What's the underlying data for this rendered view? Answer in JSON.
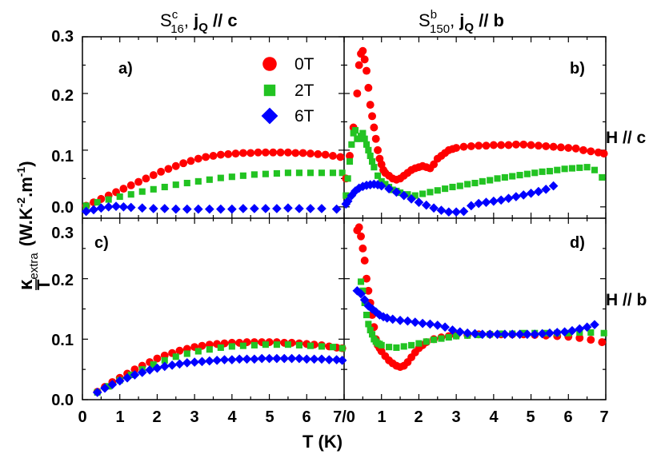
{
  "figure": {
    "titles": {
      "left": {
        "base": "S",
        "sup": "c",
        "sub": "16",
        "sep": ", ",
        "j": "j",
        "jsub": "Q",
        "rest": " // c"
      },
      "right": {
        "base": "S",
        "sup": "b",
        "sub": "150",
        "sep": ", ",
        "j": "j",
        "jsub": "Q",
        "rest": " // b"
      }
    },
    "xlabel": "T (K)",
    "ylabel": {
      "kappa": "κ",
      "extra": "extra",
      "T": "T",
      "units": "(W.K",
      "exp1": "-2",
      "mid": ".m",
      "exp2": "-1",
      "close": ")"
    },
    "row_labels": {
      "top": "H // c",
      "bottom": "H // b"
    },
    "x_ticks_left": [
      "0",
      "1",
      "2",
      "3",
      "4",
      "5",
      "6",
      "7/0"
    ],
    "x_ticks_right": [
      "1",
      "2",
      "3",
      "4",
      "5",
      "6",
      "7"
    ],
    "y_ticks_top": [
      "0.0",
      "0.1",
      "0.2",
      "0.3"
    ],
    "y_ticks_bottom": [
      "0.0",
      "0.1",
      "0.2",
      "0.3"
    ]
  },
  "chart_data": [
    {
      "panel": "a)",
      "type": "scatter",
      "xlim": [
        0,
        7
      ],
      "ylim": [
        -0.02,
        0.3
      ],
      "series": [
        {
          "name": "0T",
          "color": "#ff0000",
          "marker": "circle",
          "x": [
            0.1,
            0.3,
            0.5,
            0.7,
            0.9,
            1.1,
            1.3,
            1.5,
            1.7,
            1.9,
            2.1,
            2.3,
            2.5,
            2.7,
            2.9,
            3.1,
            3.3,
            3.5,
            3.7,
            3.9,
            4.1,
            4.3,
            4.5,
            4.7,
            4.9,
            5.1,
            5.3,
            5.5,
            5.7,
            5.9,
            6.1,
            6.3,
            6.5,
            6.7,
            6.9
          ],
          "y": [
            0.002,
            0.008,
            0.014,
            0.02,
            0.026,
            0.032,
            0.038,
            0.044,
            0.05,
            0.056,
            0.062,
            0.067,
            0.072,
            0.077,
            0.081,
            0.085,
            0.088,
            0.09,
            0.092,
            0.093,
            0.094,
            0.095,
            0.095,
            0.096,
            0.096,
            0.096,
            0.096,
            0.096,
            0.095,
            0.095,
            0.094,
            0.093,
            0.092,
            0.09,
            0.088
          ]
        },
        {
          "name": "2T",
          "color": "#22c322",
          "marker": "square",
          "x": [
            0.1,
            0.4,
            0.7,
            1.0,
            1.3,
            1.6,
            1.9,
            2.2,
            2.5,
            2.8,
            3.1,
            3.4,
            3.7,
            4.0,
            4.3,
            4.6,
            4.9,
            5.2,
            5.5,
            5.8,
            6.1,
            6.4,
            6.7,
            6.95
          ],
          "y": [
            0.002,
            0.008,
            0.013,
            0.018,
            0.022,
            0.027,
            0.031,
            0.035,
            0.039,
            0.042,
            0.045,
            0.048,
            0.051,
            0.053,
            0.055,
            0.057,
            0.058,
            0.059,
            0.06,
            0.06,
            0.06,
            0.06,
            0.06,
            0.06
          ]
        },
        {
          "name": "6T",
          "color": "#0000ff",
          "marker": "diamond",
          "x": [
            0.1,
            0.3,
            0.5,
            0.7,
            0.9,
            1.1,
            1.3,
            1.6,
            1.9,
            2.2,
            2.5,
            2.8,
            3.1,
            3.4,
            3.7,
            4.0,
            4.3,
            4.6,
            4.9,
            5.2,
            5.5,
            5.8,
            6.1,
            6.4,
            6.8
          ],
          "y": [
            -0.008,
            -0.005,
            -0.002,
            0.0,
            0.001,
            0.0,
            -0.001,
            -0.002,
            -0.003,
            -0.003,
            -0.004,
            -0.004,
            -0.004,
            -0.004,
            -0.004,
            -0.004,
            -0.003,
            -0.003,
            -0.003,
            -0.003,
            -0.002,
            -0.003,
            -0.003,
            -0.003,
            -0.004
          ]
        }
      ]
    },
    {
      "panel": "b)",
      "type": "scatter",
      "xlim": [
        0,
        7
      ],
      "ylim": [
        -0.02,
        0.3
      ],
      "series": [
        {
          "name": "0T",
          "color": "#ff0000",
          "marker": "circle",
          "x": [
            0.05,
            0.15,
            0.25,
            0.35,
            0.4,
            0.45,
            0.5,
            0.55,
            0.6,
            0.65,
            0.7,
            0.75,
            0.8,
            0.85,
            0.9,
            0.95,
            1.0,
            1.05,
            1.1,
            1.2,
            1.3,
            1.4,
            1.5,
            1.6,
            1.7,
            1.8,
            1.9,
            2.0,
            2.1,
            2.2,
            2.3,
            2.4,
            2.5,
            2.6,
            2.7,
            2.8,
            2.9,
            3.0,
            3.2,
            3.4,
            3.6,
            3.8,
            4.0,
            4.2,
            4.4,
            4.6,
            4.8,
            5.0,
            5.2,
            5.4,
            5.6,
            5.8,
            6.0,
            6.2,
            6.4,
            6.6,
            6.8,
            6.95
          ],
          "y": [
            0.05,
            0.09,
            0.14,
            0.2,
            0.25,
            0.27,
            0.275,
            0.26,
            0.24,
            0.21,
            0.18,
            0.16,
            0.14,
            0.12,
            0.1,
            0.085,
            0.075,
            0.065,
            0.06,
            0.055,
            0.05,
            0.048,
            0.05,
            0.055,
            0.06,
            0.065,
            0.068,
            0.07,
            0.072,
            0.07,
            0.068,
            0.075,
            0.085,
            0.09,
            0.095,
            0.1,
            0.102,
            0.104,
            0.106,
            0.107,
            0.108,
            0.108,
            0.109,
            0.109,
            0.109,
            0.11,
            0.11,
            0.109,
            0.108,
            0.107,
            0.106,
            0.105,
            0.104,
            0.103,
            0.1,
            0.098,
            0.096,
            0.094
          ]
        },
        {
          "name": "2T",
          "color": "#22c322",
          "marker": "square",
          "x": [
            0.05,
            0.1,
            0.15,
            0.2,
            0.25,
            0.3,
            0.35,
            0.4,
            0.45,
            0.5,
            0.55,
            0.6,
            0.65,
            0.7,
            0.75,
            0.8,
            0.9,
            1.0,
            1.1,
            1.2,
            1.3,
            1.4,
            1.5,
            1.7,
            1.9,
            2.1,
            2.3,
            2.5,
            2.7,
            2.9,
            3.1,
            3.3,
            3.5,
            3.7,
            3.9,
            4.1,
            4.3,
            4.5,
            4.7,
            4.9,
            5.1,
            5.3,
            5.5,
            5.7,
            5.9,
            6.1,
            6.3,
            6.5,
            6.7,
            6.9
          ],
          "y": [
            0.02,
            0.05,
            0.08,
            0.11,
            0.13,
            0.135,
            0.12,
            0.12,
            0.125,
            0.13,
            0.12,
            0.11,
            0.1,
            0.09,
            0.08,
            0.07,
            0.055,
            0.045,
            0.04,
            0.035,
            0.03,
            0.028,
            0.025,
            0.022,
            0.02,
            0.023,
            0.026,
            0.029,
            0.032,
            0.035,
            0.037,
            0.04,
            0.042,
            0.045,
            0.047,
            0.05,
            0.052,
            0.054,
            0.056,
            0.058,
            0.06,
            0.062,
            0.063,
            0.065,
            0.067,
            0.068,
            0.069,
            0.07,
            0.065,
            0.052
          ]
        },
        {
          "name": "6T",
          "color": "#0000ff",
          "marker": "diamond",
          "x": [
            0.05,
            0.1,
            0.2,
            0.3,
            0.4,
            0.5,
            0.6,
            0.7,
            0.8,
            0.9,
            1.0,
            1.2,
            1.4,
            1.6,
            1.8,
            2.0,
            2.2,
            2.4,
            2.6,
            2.8,
            3.0,
            3.2,
            3.4,
            3.6,
            3.8,
            4.0,
            4.2,
            4.4,
            4.6,
            4.8,
            5.0,
            5.2,
            5.4,
            5.6
          ],
          "y": [
            0.005,
            0.01,
            0.02,
            0.028,
            0.033,
            0.036,
            0.038,
            0.039,
            0.04,
            0.039,
            0.037,
            0.032,
            0.026,
            0.02,
            0.014,
            0.008,
            0.003,
            -0.002,
            -0.006,
            -0.009,
            -0.009,
            -0.008,
            0.002,
            0.006,
            0.008,
            0.01,
            0.012,
            0.015,
            0.018,
            0.021,
            0.024,
            0.027,
            0.031,
            0.037
          ]
        }
      ]
    },
    {
      "panel": "c)",
      "type": "scatter",
      "xlim": [
        0,
        7
      ],
      "ylim": [
        0,
        0.3
      ],
      "series": [
        {
          "name": "0T",
          "color": "#ff0000",
          "marker": "circle",
          "x": [
            0.4,
            0.6,
            0.8,
            1.0,
            1.2,
            1.4,
            1.6,
            1.8,
            2.0,
            2.2,
            2.4,
            2.6,
            2.8,
            3.0,
            3.2,
            3.4,
            3.6,
            3.8,
            4.0,
            4.2,
            4.4,
            4.6,
            4.8,
            5.0,
            5.2,
            5.4,
            5.6,
            5.8,
            6.0,
            6.2,
            6.4,
            6.6,
            6.8,
            6.95
          ],
          "y": [
            0.013,
            0.021,
            0.029,
            0.036,
            0.043,
            0.05,
            0.056,
            0.062,
            0.068,
            0.073,
            0.077,
            0.081,
            0.084,
            0.087,
            0.089,
            0.091,
            0.092,
            0.093,
            0.094,
            0.094,
            0.095,
            0.095,
            0.095,
            0.095,
            0.095,
            0.094,
            0.094,
            0.093,
            0.092,
            0.091,
            0.09,
            0.088,
            0.086,
            0.085
          ]
        },
        {
          "name": "2T",
          "color": "#22c322",
          "marker": "square",
          "x": [
            0.4,
            0.7,
            1.0,
            1.3,
            1.6,
            1.9,
            2.2,
            2.5,
            2.8,
            3.1,
            3.4,
            3.7,
            4.0,
            4.3,
            4.6,
            4.9,
            5.2,
            5.5,
            5.8,
            6.1,
            6.4,
            6.7,
            6.95
          ],
          "y": [
            0.012,
            0.022,
            0.032,
            0.041,
            0.05,
            0.058,
            0.065,
            0.071,
            0.076,
            0.08,
            0.083,
            0.086,
            0.088,
            0.089,
            0.09,
            0.091,
            0.091,
            0.091,
            0.09,
            0.089,
            0.088,
            0.087,
            0.085
          ]
        },
        {
          "name": "6T",
          "color": "#0000ff",
          "marker": "diamond",
          "x": [
            0.4,
            0.6,
            0.8,
            1.0,
            1.2,
            1.4,
            1.6,
            1.8,
            2.0,
            2.2,
            2.4,
            2.6,
            2.8,
            3.0,
            3.2,
            3.4,
            3.6,
            3.8,
            4.0,
            4.2,
            4.4,
            4.6,
            4.8,
            5.0,
            5.2,
            5.4,
            5.6,
            5.8,
            6.0,
            6.2,
            6.4,
            6.6,
            6.8,
            6.95
          ],
          "y": [
            0.012,
            0.019,
            0.025,
            0.031,
            0.036,
            0.041,
            0.045,
            0.049,
            0.052,
            0.055,
            0.057,
            0.059,
            0.061,
            0.062,
            0.063,
            0.064,
            0.065,
            0.066,
            0.066,
            0.067,
            0.067,
            0.067,
            0.068,
            0.068,
            0.068,
            0.068,
            0.068,
            0.068,
            0.067,
            0.067,
            0.067,
            0.066,
            0.066,
            0.065
          ]
        }
      ]
    },
    {
      "panel": "d)",
      "type": "scatter",
      "xlim": [
        0,
        7
      ],
      "ylim": [
        0,
        0.3
      ],
      "series": [
        {
          "name": "0T",
          "color": "#ff0000",
          "marker": "circle",
          "x": [
            0.35,
            0.4,
            0.45,
            0.5,
            0.55,
            0.6,
            0.65,
            0.7,
            0.75,
            0.8,
            0.85,
            0.9,
            0.95,
            1.0,
            1.1,
            1.2,
            1.3,
            1.4,
            1.5,
            1.6,
            1.7,
            1.8,
            1.9,
            2.0,
            2.1,
            2.2,
            2.4,
            2.6,
            2.8,
            3.0,
            3.3,
            3.6,
            3.9,
            4.2,
            4.5,
            4.8,
            5.1,
            5.4,
            5.7,
            6.0,
            6.3,
            6.6,
            6.9
          ],
          "y": [
            0.28,
            0.285,
            0.27,
            0.25,
            0.23,
            0.2,
            0.18,
            0.16,
            0.14,
            0.12,
            0.1,
            0.09,
            0.085,
            0.08,
            0.072,
            0.065,
            0.06,
            0.056,
            0.054,
            0.056,
            0.062,
            0.07,
            0.078,
            0.085,
            0.09,
            0.095,
            0.1,
            0.103,
            0.105,
            0.106,
            0.107,
            0.108,
            0.108,
            0.108,
            0.108,
            0.108,
            0.107,
            0.106,
            0.105,
            0.104,
            0.102,
            0.099,
            0.095
          ]
        },
        {
          "name": "2T",
          "color": "#22c322",
          "marker": "square",
          "x": [
            0.45,
            0.5,
            0.55,
            0.6,
            0.65,
            0.7,
            0.75,
            0.8,
            0.85,
            0.9,
            0.95,
            1.0,
            1.2,
            1.4,
            1.6,
            1.8,
            2.0,
            2.2,
            2.4,
            2.6,
            2.8,
            3.0,
            3.3,
            3.6,
            3.9,
            4.2,
            4.5,
            4.8,
            5.1,
            5.4,
            5.7,
            6.0,
            6.3,
            6.6,
            6.95
          ],
          "y": [
            0.195,
            0.18,
            0.16,
            0.14,
            0.125,
            0.115,
            0.108,
            0.1,
            0.096,
            0.093,
            0.092,
            0.09,
            0.087,
            0.086,
            0.088,
            0.09,
            0.093,
            0.096,
            0.099,
            0.101,
            0.103,
            0.105,
            0.106,
            0.107,
            0.108,
            0.109,
            0.109,
            0.11,
            0.11,
            0.11,
            0.11,
            0.11,
            0.111,
            0.111,
            0.11
          ]
        },
        {
          "name": "6T",
          "color": "#0000ff",
          "marker": "diamond",
          "x": [
            0.35,
            0.45,
            0.55,
            0.65,
            0.75,
            0.85,
            0.95,
            1.05,
            1.15,
            1.3,
            1.5,
            1.7,
            1.9,
            2.1,
            2.3,
            2.5,
            2.7,
            2.9,
            3.1,
            3.3,
            3.5,
            3.7,
            3.9,
            4.1,
            4.3,
            4.5,
            4.7,
            4.9,
            5.1,
            5.3,
            5.5,
            5.7,
            5.9,
            6.1,
            6.3,
            6.5,
            6.7
          ],
          "y": [
            0.18,
            0.175,
            0.165,
            0.155,
            0.15,
            0.145,
            0.14,
            0.137,
            0.135,
            0.133,
            0.131,
            0.13,
            0.128,
            0.126,
            0.125,
            0.123,
            0.12,
            0.115,
            0.112,
            0.11,
            0.109,
            0.108,
            0.108,
            0.108,
            0.108,
            0.108,
            0.108,
            0.108,
            0.108,
            0.109,
            0.11,
            0.111,
            0.112,
            0.114,
            0.117,
            0.12,
            0.124
          ]
        }
      ]
    }
  ],
  "legend": [
    {
      "label": "0T",
      "color": "#ff0000",
      "marker": "circle"
    },
    {
      "label": "2T",
      "color": "#22c322",
      "marker": "square"
    },
    {
      "label": "6T",
      "color": "#0000ff",
      "marker": "diamond"
    }
  ]
}
